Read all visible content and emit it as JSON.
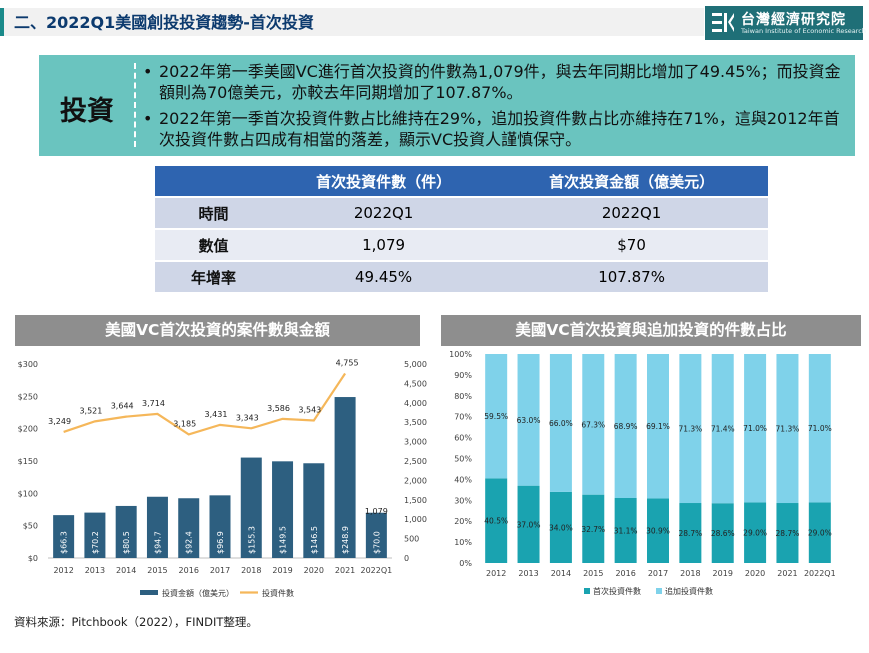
{
  "header": {
    "title": "二、2022Q1美國創投投資趨勢-首次投資"
  },
  "logo": {
    "name_cn": "台灣經濟研究院",
    "name_en": "Taiwan Institute of Economic Research"
  },
  "summary": {
    "label": "投資",
    "bullets": [
      "2022年第一季美國VC進行首次投資的件數為1,079件，與去年同期比增加了49.45%；而投資金額則為70億美元，亦較去年同期增加了107.87%。",
      "2022年第一季首次投資件數占比維持在29%，追加投資件數占比亦維持在71%，這與2012年首次投資件數占四成有相當的落差，顯示VC投資人謹慎保守。"
    ]
  },
  "kpi_table": {
    "headers": [
      "",
      "首次投資件數（件）",
      "首次投資金額（億美元）"
    ],
    "rows": [
      {
        "label": "時間",
        "count": "2022Q1",
        "amount": "2022Q1"
      },
      {
        "label": "數值",
        "count": "1,079",
        "amount": "$70"
      },
      {
        "label": "年增率",
        "count": "49.45%",
        "amount": "107.87%"
      }
    ]
  },
  "source": "資料來源：Pitchbook（2022），FINDIT整理。",
  "chart_data": [
    {
      "type": "bar+line",
      "title": "美國VC首次投資的案件數與金額",
      "categories": [
        "2012",
        "2013",
        "2014",
        "2015",
        "2016",
        "2017",
        "2018",
        "2019",
        "2020",
        "2021",
        "2022Q1"
      ],
      "series": [
        {
          "name": "投資金額（億美元）",
          "type": "bar",
          "axis": "left",
          "values": [
            66.3,
            70.2,
            80.5,
            94.7,
            92.4,
            96.9,
            155.3,
            149.5,
            146.5,
            248.9,
            70.0
          ],
          "labels": [
            "$66.3",
            "$70.2",
            "$80.5",
            "$94.7",
            "$92.4",
            "$96.9",
            "$155.3",
            "$149.5",
            "$146.5",
            "$248.9",
            "$70.0"
          ]
        },
        {
          "name": "投資件數",
          "type": "line",
          "axis": "right",
          "values": [
            3249,
            3521,
            3644,
            3714,
            3185,
            3431,
            3343,
            3586,
            3543,
            4755,
            1079
          ],
          "labels": [
            "3,249",
            "3,521",
            "3,644",
            "3,714",
            "3,185",
            "3,431",
            "3,343",
            "3,586",
            "3,543",
            "4,755",
            "1,079"
          ]
        }
      ],
      "y_left": {
        "min": 0,
        "max": 300,
        "ticks": [
          "$0",
          "$50",
          "$100",
          "$150",
          "$200",
          "$250",
          "$300"
        ]
      },
      "y_right": {
        "min": 0,
        "max": 5000,
        "ticks": [
          "0",
          "500",
          "1,000",
          "1,500",
          "2,000",
          "2,500",
          "3,000",
          "3,500",
          "4,000",
          "4,500",
          "5,000"
        ]
      },
      "colors": {
        "bar": "#2d5f80",
        "line": "#f5b75a"
      },
      "legend": "bottom"
    },
    {
      "type": "stacked-bar",
      "title": "美國VC首次投資與追加投資的件數占比",
      "categories": [
        "2012",
        "2013",
        "2014",
        "2015",
        "2016",
        "2017",
        "2018",
        "2019",
        "2020",
        "2021",
        "2022Q1"
      ],
      "series": [
        {
          "name": "首次投資件數",
          "values": [
            40.5,
            37.0,
            34.0,
            32.7,
            31.1,
            30.9,
            28.7,
            28.6,
            29.0,
            28.7,
            29.0
          ],
          "labels": [
            "40.5%",
            "37.0%",
            "34.0%",
            "32.7%",
            "31.1%",
            "30.9%",
            "28.7%",
            "28.6%",
            "29.0%",
            "28.7%",
            "29.0%"
          ]
        },
        {
          "name": "追加投資件數",
          "values": [
            59.5,
            63.0,
            66.0,
            67.3,
            68.9,
            69.1,
            71.3,
            71.4,
            71.0,
            71.3,
            71.0
          ],
          "labels": [
            "59.5%",
            "63.0%",
            "66.0%",
            "67.3%",
            "68.9%",
            "69.1%",
            "71.3%",
            "71.4%",
            "71.0%",
            "71.3%",
            "71.0%"
          ]
        }
      ],
      "y": {
        "min": 0,
        "max": 100,
        "ticks": [
          "0%",
          "10%",
          "20%",
          "30%",
          "40%",
          "50%",
          "60%",
          "70%",
          "80%",
          "90%",
          "100%"
        ]
      },
      "colors": {
        "first": "#1aa3b0",
        "follow": "#7fd2ea"
      },
      "legend": "bottom"
    }
  ]
}
